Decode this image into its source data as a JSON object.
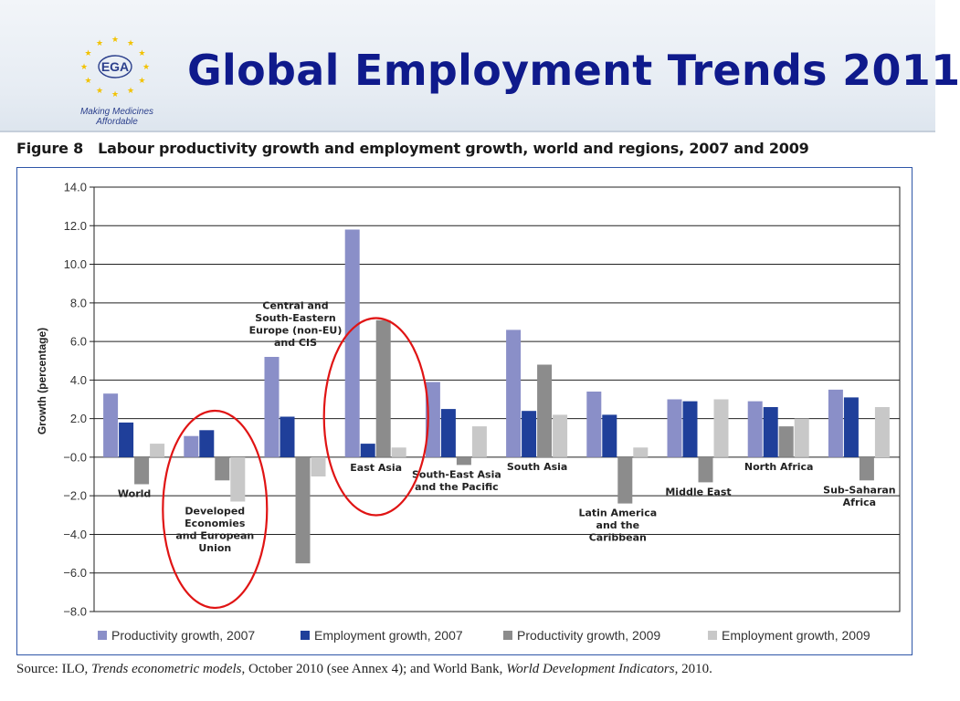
{
  "header": {
    "logo_text": "EGA",
    "tagline": "Making Medicines Affordable",
    "title": "Global Employment Trends 2011"
  },
  "figure": {
    "number": "Figure 8",
    "caption": "Labour productivity growth and employment growth, world and regions, 2007 and 2009"
  },
  "source": {
    "prefix": "Source: ILO, ",
    "ref1_italic": "Trends econometric models",
    "mid": ", October 2010 (see Annex 4); and World Bank, ",
    "ref2_italic": "World Development Indicators",
    "suffix": ", 2010."
  },
  "colors": {
    "title": "#0f1a8c",
    "frame": "#2f56a8",
    "highlight_circle": "#e01414"
  },
  "chart_data": {
    "type": "bar",
    "ylabel": "Growth (percentage)",
    "ylim": [
      -8,
      14
    ],
    "yticks": [
      14,
      12,
      10,
      8,
      6,
      4,
      2,
      0,
      -2,
      -4,
      -6,
      -8
    ],
    "ytick_labels": [
      "14.0",
      "12.0",
      "10.0",
      "8.0",
      "6.0",
      "4.0",
      "2.0",
      "−0.0",
      "−2.0",
      "−4.0",
      "−6.0",
      "−8.0"
    ],
    "grid": true,
    "legend_position": "bottom",
    "categories": [
      "World",
      "Developed Economies and European Union",
      "Central and South-Eastern Europe (non-EU) and CIS",
      "East Asia",
      "South-East Asia and the Pacific",
      "South Asia",
      "Latin America and the Caribbean",
      "Middle East",
      "North Africa",
      "Sub-Saharan Africa"
    ],
    "category_label_lines": [
      [
        "World"
      ],
      [
        "Developed",
        "Economies",
        "and European",
        "Union"
      ],
      [
        "Central and",
        "South-Eastern",
        "Europe (non-EU)",
        "and CIS"
      ],
      [
        "East Asia"
      ],
      [
        "South-East Asia",
        "and the Pacific"
      ],
      [
        "South Asia"
      ],
      [
        "Latin America",
        "and the",
        "Caribbean"
      ],
      [
        "Middle East"
      ],
      [
        "North Africa"
      ],
      [
        "Sub-Saharan",
        "Africa"
      ]
    ],
    "series": [
      {
        "name": "Productivity growth, 2007",
        "color": "#8a8fc8",
        "values": [
          3.3,
          1.1,
          5.2,
          11.8,
          3.9,
          6.6,
          3.4,
          3.0,
          2.9,
          3.5
        ]
      },
      {
        "name": "Employment growth, 2007",
        "color": "#1f3f9a",
        "values": [
          1.8,
          1.4,
          2.1,
          0.7,
          2.5,
          2.4,
          2.2,
          2.9,
          2.6,
          3.1
        ]
      },
      {
        "name": "Productivity growth, 2009",
        "color": "#8c8c8c",
        "values": [
          -1.4,
          -1.2,
          -5.5,
          7.1,
          -0.4,
          4.8,
          -2.4,
          -1.3,
          1.6,
          -1.2
        ]
      },
      {
        "name": "Employment growth, 2009",
        "color": "#c8c8c8",
        "values": [
          0.7,
          -2.3,
          -1.0,
          0.5,
          1.6,
          2.2,
          0.5,
          3.0,
          2.0,
          2.6
        ]
      }
    ],
    "highlighted_categories": [
      "Developed Economies and European Union",
      "East Asia"
    ]
  }
}
